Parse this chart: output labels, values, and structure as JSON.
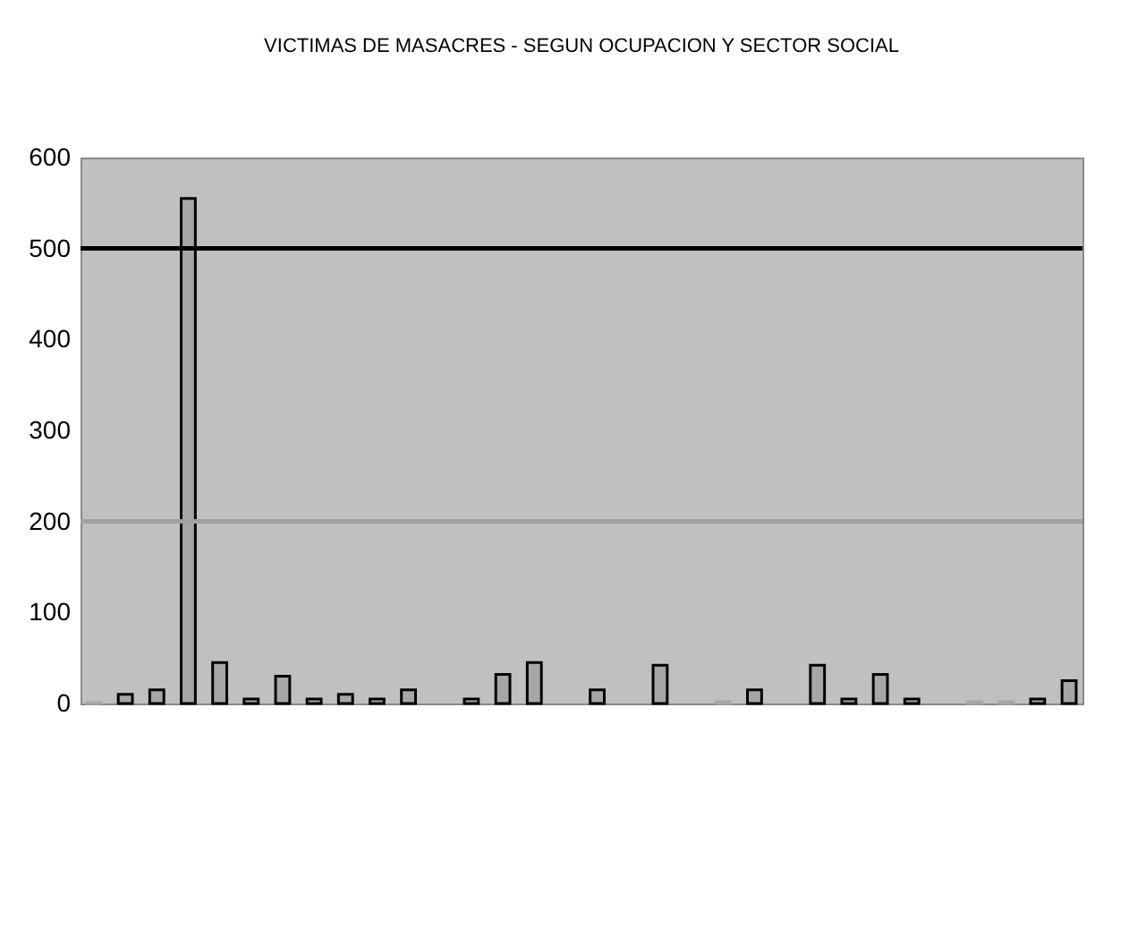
{
  "chart_data": {
    "type": "bar",
    "title": "VICTIMAS DE MASACRES - SEGUN OCUPACION Y SECTOR SOCIAL",
    "categories": [
      null,
      null,
      null,
      null,
      null,
      null,
      null,
      null,
      null,
      null,
      null,
      null,
      null,
      null,
      null,
      null,
      null,
      null,
      null,
      null,
      null,
      null,
      null,
      null,
      null,
      null,
      null,
      null,
      null,
      null,
      null,
      null
    ],
    "values": [
      1,
      10,
      15,
      555,
      45,
      5,
      30,
      5,
      10,
      5,
      15,
      0,
      5,
      32,
      45,
      0,
      15,
      0,
      42,
      0,
      2,
      15,
      0,
      42,
      5,
      32,
      5,
      0,
      2,
      2,
      5,
      25
    ],
    "color": "#a6a6a6",
    "ylim": [
      0,
      600
    ],
    "yticks": [
      0,
      100,
      200,
      300,
      400,
      500,
      600
    ],
    "ref_lines": [
      {
        "axis": "y",
        "value": 500,
        "color": "#000000"
      },
      {
        "axis": "y",
        "value": 200,
        "color": "#a0a0a0"
      }
    ],
    "grid": false
  }
}
